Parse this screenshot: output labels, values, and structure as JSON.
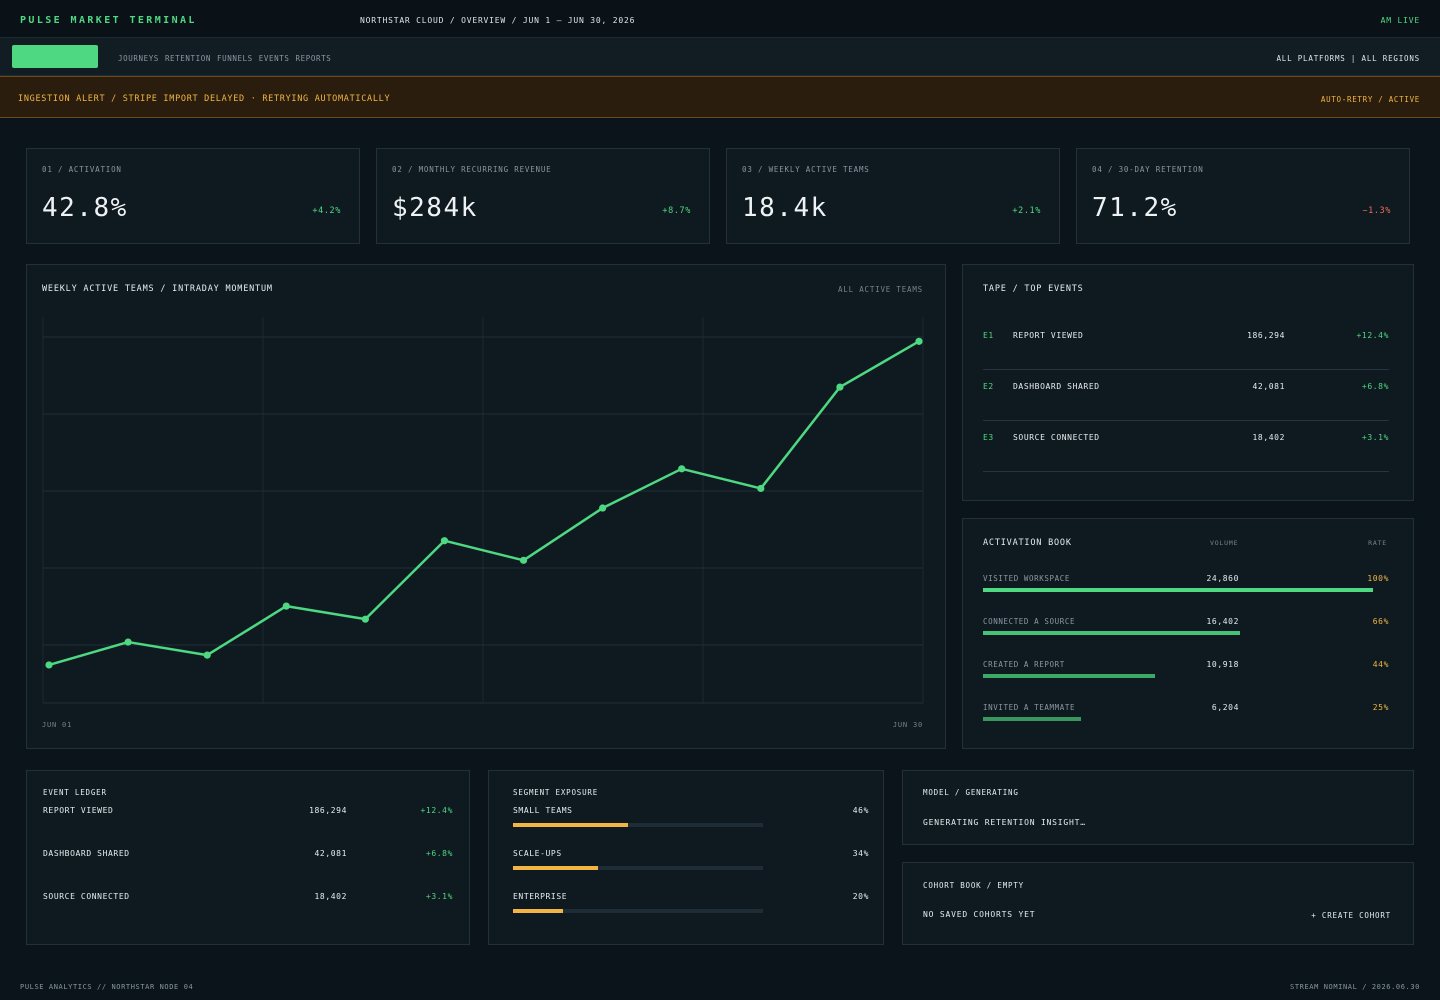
{
  "header": {
    "brand": "PULSE MARKET TERMINAL",
    "breadcrumb": "NORTHSTAR CLOUD / OVERVIEW / JUN 1 – JUN 30, 2026",
    "live": "AM LIVE"
  },
  "nav": {
    "links": [
      "JOURNEYS",
      "RETENTION",
      "FUNNELS",
      "EVENTS",
      "REPORTS"
    ],
    "scope": "ALL PLATFORMS | ALL REGIONS"
  },
  "alert": {
    "text": "INGESTION ALERT / STRIPE IMPORT DELAYED · RETRYING AUTOMATICALLY",
    "status": "AUTO-RETRY / ACTIVE"
  },
  "kpis": [
    {
      "label": "01 / ACTIVATION",
      "value": "42.8%",
      "delta": "+4.2%",
      "dir": "up"
    },
    {
      "label": "02 / MONTHLY RECURRING REVENUE",
      "value": "$284k",
      "delta": "+8.7%",
      "dir": "up"
    },
    {
      "label": "03 / WEEKLY ACTIVE TEAMS",
      "value": "18.4k",
      "delta": "+2.1%",
      "dir": "up"
    },
    {
      "label": "04 / 30-DAY RETENTION",
      "value": "71.2%",
      "delta": "−1.3%",
      "dir": "down"
    }
  ],
  "main_chart": {
    "title": "WEEKLY ACTIVE TEAMS / INTRADAY MOMENTUM",
    "filter": "ALL ACTIVE TEAMS",
    "x_start": "JUN 01",
    "x_end": "JUN 30"
  },
  "chart_data": {
    "type": "line",
    "title": "WEEKLY ACTIVE TEAMS / INTRADAY MOMENTUM",
    "xlabel": "",
    "ylabel": "",
    "x_tick_labels": [
      "JUN 01",
      "JUN 30"
    ],
    "x": [
      0,
      1,
      2,
      3,
      4,
      5,
      6,
      7,
      8,
      9,
      10,
      11
    ],
    "series": [
      {
        "values": [
          4,
          11,
          7,
          22,
          18,
          42,
          36,
          52,
          64,
          58,
          89,
          103
        ],
        "color": "#4ed882"
      }
    ],
    "ylim": [
      0,
      108
    ],
    "grid": true
  },
  "tape": {
    "title": "TAPE / TOP EVENTS",
    "rows": [
      {
        "id": "E1",
        "name": "REPORT VIEWED",
        "volume": "186,294",
        "delta": "+12.4%"
      },
      {
        "id": "E2",
        "name": "DASHBOARD SHARED",
        "volume": "42,081",
        "delta": "+6.8%"
      },
      {
        "id": "E3",
        "name": "SOURCE CONNECTED",
        "volume": "18,402",
        "delta": "+3.1%"
      }
    ]
  },
  "activation_book": {
    "title": "ACTIVATION BOOK",
    "col_volume": "VOLUME",
    "col_rate": "RATE",
    "rows": [
      {
        "step": "VISITED WORKSPACE",
        "volume": "24,860",
        "rate": "100%",
        "fraction": 1.0
      },
      {
        "step": "CONNECTED A SOURCE",
        "volume": "16,402",
        "rate": "66%",
        "fraction": 0.66
      },
      {
        "step": "CREATED A REPORT",
        "volume": "10,918",
        "rate": "44%",
        "fraction": 0.44
      },
      {
        "step": "INVITED A TEAMMATE",
        "volume": "6,204",
        "rate": "25%",
        "fraction": 0.25
      }
    ]
  },
  "event_ledger": {
    "title": "EVENT LEDGER",
    "rows": [
      {
        "name": "REPORT VIEWED",
        "volume": "186,294",
        "delta": "+12.4%"
      },
      {
        "name": "DASHBOARD SHARED",
        "volume": "42,081",
        "delta": "+6.8%"
      },
      {
        "name": "SOURCE CONNECTED",
        "volume": "18,402",
        "delta": "+3.1%"
      }
    ]
  },
  "segment_exposure": {
    "title": "SEGMENT EXPOSURE",
    "rows": [
      {
        "name": "SMALL TEAMS",
        "pct": "46%",
        "fraction": 0.46
      },
      {
        "name": "SCALE-UPS",
        "pct": "34%",
        "fraction": 0.34
      },
      {
        "name": "ENTERPRISE",
        "pct": "20%",
        "fraction": 0.2
      }
    ]
  },
  "model": {
    "title": "MODEL / GENERATING",
    "message": "GENERATING RETENTION INSIGHT…"
  },
  "cohort": {
    "title": "COHORT BOOK / EMPTY",
    "message": "NO SAVED COHORTS YET",
    "action": "+ CREATE COHORT"
  },
  "footer": {
    "left": "PULSE ANALYTICS // NORTHSTAR NODE 04",
    "right": "STREAM NOMINAL / 2026.06.30"
  },
  "colors": {
    "accent": "#4ed882",
    "warning": "#f2b543",
    "negative": "#f06a5a",
    "background": "#0b141a"
  }
}
